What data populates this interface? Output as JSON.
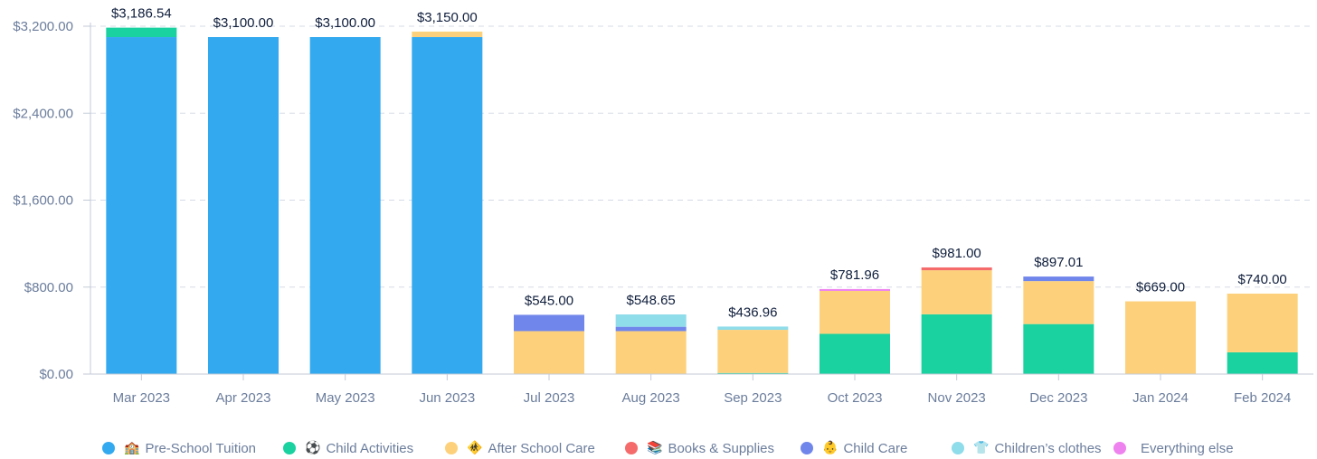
{
  "chart_data": {
    "type": "bar",
    "stacked": true,
    "categories": [
      "Mar 2023",
      "Apr 2023",
      "May 2023",
      "Jun 2023",
      "Jul 2023",
      "Aug 2023",
      "Sep 2023",
      "Oct 2023",
      "Nov 2023",
      "Dec 2023",
      "Jan 2024",
      "Feb 2024"
    ],
    "totals_labels": [
      "$3,186.54",
      "$3,100.00",
      "$3,100.00",
      "$3,150.00",
      "$545.00",
      "$548.65",
      "$436.96",
      "$781.96",
      "$981.00",
      "$897.01",
      "$669.00",
      "$740.00"
    ],
    "yticks": [
      "$0.00",
      "$800.00",
      "$1,600.00",
      "$2,400.00",
      "$3,200.00"
    ],
    "ylim": [
      0,
      3200
    ],
    "grid": true,
    "legend_position": "bottom",
    "series": [
      {
        "name": "Pre-School Tuition",
        "icon": "🏫",
        "color": "#33a9ef",
        "values": [
          3100,
          3100,
          3100,
          3100,
          0,
          0,
          0,
          0,
          0,
          0,
          0,
          0
        ]
      },
      {
        "name": "Child Activities",
        "icon": "⚽",
        "color": "#1ad1a0",
        "values": [
          86.54,
          0,
          0,
          0,
          0,
          0,
          10,
          370,
          550,
          460,
          0,
          200
        ]
      },
      {
        "name": "After School Care",
        "icon": "🚸",
        "color": "#fdd17b",
        "values": [
          0,
          0,
          0,
          50,
          395,
          395,
          396.96,
          395,
          405,
          395,
          669,
          540
        ]
      },
      {
        "name": "Books & Supplies",
        "icon": "📚",
        "color": "#f56b6b",
        "values": [
          0,
          0,
          0,
          0,
          0,
          0,
          0,
          0,
          26,
          0,
          0,
          0
        ]
      },
      {
        "name": "Child Care",
        "icon": "👶",
        "color": "#7086ea",
        "values": [
          0,
          0,
          0,
          0,
          150,
          40,
          0,
          0,
          0,
          42.01,
          0,
          0
        ]
      },
      {
        "name": "Children’s clothes",
        "icon": "👕",
        "color": "#8fdcea",
        "values": [
          0,
          0,
          0,
          0,
          0,
          113.65,
          30,
          0,
          0,
          0,
          0,
          0
        ]
      },
      {
        "name": "Everything else",
        "icon": "",
        "color": "#ee82ee",
        "values": [
          0,
          0,
          0,
          0,
          0,
          0,
          0,
          16.96,
          0,
          0,
          0,
          0
        ]
      }
    ]
  }
}
